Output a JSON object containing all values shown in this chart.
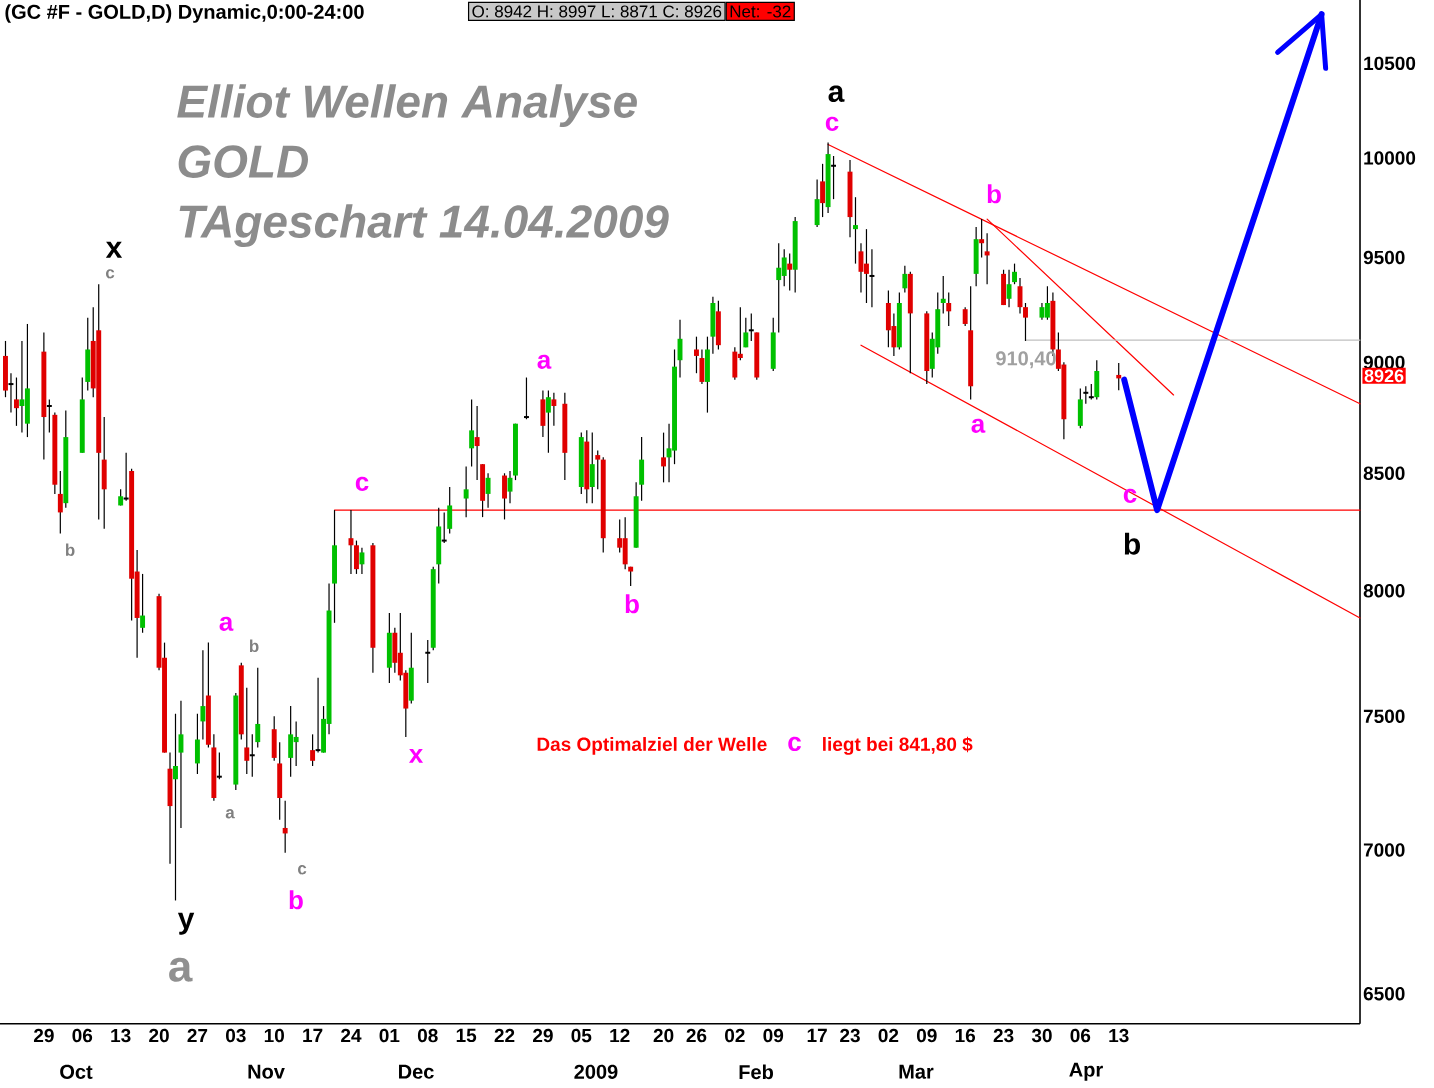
{
  "chart_data": {
    "type": "candlestick",
    "title": "(GC #F - GOLD,D) Dynamic,0:00-24:00",
    "subtitle": "Elliot Wellen Analyse",
    "x": [
      "2008-09-22",
      "2008-09-23",
      "2008-09-24",
      "2008-09-25",
      "2008-09-26",
      "2008-09-29",
      "2008-09-30",
      "2008-10-01",
      "2008-10-02",
      "2008-10-03",
      "2008-10-06",
      "2008-10-07",
      "2008-10-08",
      "2008-10-09",
      "2008-10-10",
      "2008-10-13",
      "2008-10-14",
      "2008-10-15",
      "2008-10-16",
      "2008-10-17",
      "2008-10-20",
      "2008-10-21",
      "2008-10-22",
      "2008-10-23",
      "2008-10-24",
      "2008-10-27",
      "2008-10-28",
      "2008-10-29",
      "2008-10-30",
      "2008-10-31",
      "2008-11-03",
      "2008-11-04",
      "2008-11-05",
      "2008-11-06",
      "2008-11-07",
      "2008-11-10",
      "2008-11-11",
      "2008-11-12",
      "2008-11-13",
      "2008-11-14",
      "2008-11-17",
      "2008-11-18",
      "2008-11-19",
      "2008-11-20",
      "2008-11-21",
      "2008-11-24",
      "2008-11-25",
      "2008-11-26",
      "2008-11-28",
      "2008-12-01",
      "2008-12-02",
      "2008-12-03",
      "2008-12-04",
      "2008-12-05",
      "2008-12-08",
      "2008-12-09",
      "2008-12-10",
      "2008-12-11",
      "2008-12-12",
      "2008-12-15",
      "2008-12-16",
      "2008-12-17",
      "2008-12-18",
      "2008-12-19",
      "2008-12-22",
      "2008-12-23",
      "2008-12-24",
      "2008-12-26",
      "2008-12-29",
      "2008-12-30",
      "2008-12-31",
      "2009-01-02",
      "2009-01-05",
      "2009-01-06",
      "2009-01-07",
      "2009-01-08",
      "2009-01-09",
      "2009-01-12",
      "2009-01-13",
      "2009-01-14",
      "2009-01-15",
      "2009-01-16",
      "2009-01-20",
      "2009-01-21",
      "2009-01-22",
      "2009-01-23",
      "2009-01-26",
      "2009-01-27",
      "2009-01-28",
      "2009-01-29",
      "2009-01-30",
      "2009-02-02",
      "2009-02-03",
      "2009-02-04",
      "2009-02-05",
      "2009-02-06",
      "2009-02-09",
      "2009-02-10",
      "2009-02-11",
      "2009-02-12",
      "2009-02-13",
      "2009-02-17",
      "2009-02-18",
      "2009-02-19",
      "2009-02-20",
      "2009-02-23",
      "2009-02-24",
      "2009-02-25",
      "2009-02-26",
      "2009-02-27",
      "2009-03-02",
      "2009-03-03",
      "2009-03-04",
      "2009-03-05",
      "2009-03-06",
      "2009-03-09",
      "2009-03-10",
      "2009-03-11",
      "2009-03-12",
      "2009-03-13",
      "2009-03-16",
      "2009-03-17",
      "2009-03-18",
      "2009-03-19",
      "2009-03-20",
      "2009-03-23",
      "2009-03-24",
      "2009-03-25",
      "2009-03-26",
      "2009-03-27",
      "2009-03-30",
      "2009-03-31",
      "2009-04-01",
      "2009-04-02",
      "2009-04-03",
      "2009-04-06",
      "2009-04-07",
      "2009-04-08",
      "2009-04-09",
      "2009-04-13"
    ],
    "ohlc": [
      [
        9030,
        9100,
        8840,
        8870
      ],
      [
        8900,
        8950,
        8770,
        8900
      ],
      [
        8830,
        8930,
        8710,
        8790
      ],
      [
        8800,
        9100,
        8680,
        8830
      ],
      [
        8720,
        9180,
        8660,
        8880
      ],
      [
        9050,
        9140,
        8560,
        8750
      ],
      [
        8800,
        8830,
        8680,
        8800
      ],
      [
        8760,
        8770,
        8410,
        8450
      ],
      [
        8410,
        8510,
        8240,
        8330
      ],
      [
        8370,
        8780,
        8350,
        8660
      ],
      [
        8590,
        8930,
        8590,
        8830
      ],
      [
        8910,
        9210,
        8870,
        9060
      ],
      [
        9100,
        9260,
        8840,
        8880
      ],
      [
        9150,
        9370,
        8300,
        8590
      ],
      [
        8560,
        8750,
        8260,
        8430
      ],
      [
        8360,
        8430,
        8360,
        8400
      ],
      [
        8390,
        8590,
        8380,
        8390
      ],
      [
        8510,
        8520,
        7880,
        8050
      ],
      [
        8080,
        8170,
        7730,
        7890
      ],
      [
        7850,
        8070,
        7830,
        7900
      ],
      [
        7980,
        7990,
        7680,
        7690
      ],
      [
        7730,
        7790,
        7360,
        7360
      ],
      [
        7300,
        7360,
        6950,
        7160
      ],
      [
        7260,
        7510,
        6820,
        7310
      ],
      [
        7360,
        7560,
        7080,
        7430
      ],
      [
        7320,
        7510,
        7280,
        7410
      ],
      [
        7480,
        7760,
        7410,
        7540
      ],
      [
        7580,
        7790,
        7380,
        7390
      ],
      [
        7380,
        7430,
        7180,
        7190
      ],
      [
        7270,
        7360,
        7260,
        7270
      ],
      [
        7240,
        7590,
        7220,
        7580
      ],
      [
        7700,
        7710,
        7410,
        7430
      ],
      [
        7380,
        7610,
        7280,
        7330
      ],
      [
        7350,
        7430,
        7270,
        7350
      ],
      [
        7400,
        7690,
        7380,
        7470
      ],
      [
        7450,
        7500,
        7330,
        7340
      ],
      [
        7320,
        7400,
        7110,
        7190
      ],
      [
        7080,
        7180,
        6990,
        7060
      ],
      [
        7340,
        7540,
        7270,
        7430
      ],
      [
        7400,
        7480,
        7310,
        7420
      ],
      [
        7370,
        7430,
        7310,
        7330
      ],
      [
        7370,
        7650,
        7360,
        7370
      ],
      [
        7360,
        7540,
        7360,
        7490
      ],
      [
        7470,
        8030,
        7430,
        7920
      ],
      [
        8030,
        8340,
        7870,
        8190
      ],
      [
        8220,
        8340,
        8070,
        8190
      ],
      [
        8190,
        8210,
        8070,
        8090
      ],
      [
        8110,
        8180,
        8070,
        8160
      ],
      [
        8190,
        8200,
        7670,
        7770
      ],
      [
        7690,
        7910,
        7630,
        7830
      ],
      [
        7830,
        7850,
        7670,
        7710
      ],
      [
        7750,
        7910,
        7640,
        7660
      ],
      [
        7670,
        7680,
        7420,
        7530
      ],
      [
        7560,
        7830,
        7550,
        7690
      ],
      [
        7750,
        7800,
        7630,
        7750
      ],
      [
        7770,
        8100,
        7760,
        8090
      ],
      [
        8110,
        8350,
        8030,
        8270
      ],
      [
        8210,
        8330,
        8200,
        8210
      ],
      [
        8260,
        8440,
        8240,
        8360
      ],
      [
        8390,
        8530,
        8310,
        8430
      ],
      [
        8610,
        8830,
        8530,
        8690
      ],
      [
        8660,
        8800,
        8470,
        8620
      ],
      [
        8540,
        8540,
        8310,
        8380
      ],
      [
        8410,
        8500,
        8350,
        8480
      ],
      [
        8490,
        8500,
        8300,
        8390
      ],
      [
        8420,
        8510,
        8370,
        8480
      ],
      [
        8490,
        8720,
        8470,
        8720
      ],
      [
        8750,
        8930,
        8740,
        8750
      ],
      [
        8830,
        8870,
        8660,
        8710
      ],
      [
        8770,
        8870,
        8590,
        8840
      ],
      [
        8830,
        8860,
        8710,
        8800
      ],
      [
        8810,
        8860,
        8470,
        8590
      ],
      [
        8440,
        8680,
        8410,
        8660
      ],
      [
        8640,
        8690,
        8370,
        8430
      ],
      [
        8440,
        8680,
        8370,
        8540
      ],
      [
        8580,
        8600,
        8430,
        8560
      ],
      [
        8560,
        8570,
        8160,
        8220
      ],
      [
        8220,
        8300,
        8160,
        8180
      ],
      [
        8220,
        8310,
        8090,
        8110
      ],
      [
        8100,
        8100,
        8020,
        8080
      ],
      [
        8180,
        8460,
        8180,
        8400
      ],
      [
        8450,
        8660,
        8380,
        8560
      ],
      [
        8570,
        8680,
        8460,
        8530
      ],
      [
        8570,
        8720,
        8460,
        8610
      ],
      [
        8600,
        9060,
        8540,
        8980
      ],
      [
        9010,
        9200,
        8930,
        9110
      ],
      [
        9060,
        9120,
        8950,
        9030
      ],
      [
        9020,
        9060,
        8900,
        8910
      ],
      [
        8910,
        9120,
        8770,
        9060
      ],
      [
        9120,
        9310,
        9040,
        9280
      ],
      [
        9240,
        9290,
        9060,
        9080
      ],
      [
        9050,
        9070,
        8920,
        8930
      ],
      [
        9040,
        9260,
        9010,
        9020
      ],
      [
        9070,
        9210,
        9070,
        9140
      ],
      [
        9150,
        9230,
        9100,
        9150
      ],
      [
        9140,
        9140,
        8920,
        8930
      ],
      [
        8970,
        9210,
        8960,
        9140
      ],
      [
        9390,
        9570,
        9140,
        9450
      ],
      [
        9410,
        9540,
        9360,
        9500
      ],
      [
        9470,
        9520,
        9340,
        9440
      ],
      [
        9440,
        9700,
        9330,
        9680
      ],
      [
        9660,
        9890,
        9650,
        9790
      ],
      [
        9880,
        9970,
        9700,
        9770
      ],
      [
        9750,
        10080,
        9720,
        10020
      ],
      [
        9960,
        10010,
        9790,
        9960
      ],
      [
        9930,
        9990,
        9600,
        9700
      ],
      [
        9640,
        9800,
        9470,
        9660
      ],
      [
        9530,
        9570,
        9330,
        9430
      ],
      [
        9470,
        9640,
        9280,
        9420
      ],
      [
        9410,
        9540,
        9260,
        9410
      ],
      [
        9280,
        9340,
        9070,
        9150
      ],
      [
        9170,
        9230,
        9030,
        9070
      ],
      [
        9070,
        9330,
        9060,
        9280
      ],
      [
        9350,
        9460,
        9330,
        9420
      ],
      [
        9420,
        9430,
        8950,
        9230
      ],
      [
        9230,
        9240,
        8900,
        8960
      ],
      [
        8970,
        9140,
        8930,
        9110
      ],
      [
        9070,
        9330,
        9040,
        9250
      ],
      [
        9280,
        9410,
        9230,
        9300
      ],
      [
        9280,
        9330,
        9170,
        9240
      ],
      [
        9250,
        9260,
        9170,
        9180
      ],
      [
        9150,
        9360,
        8830,
        8890
      ],
      [
        9420,
        9650,
        9360,
        9590
      ],
      [
        9590,
        9690,
        9500,
        9570
      ],
      [
        9530,
        9620,
        9370,
        9510
      ],
      [
        9420,
        9440,
        9270,
        9270
      ],
      [
        9300,
        9440,
        9260,
        9370
      ],
      [
        9380,
        9470,
        9370,
        9430
      ],
      [
        9360,
        9400,
        9230,
        9260
      ],
      [
        9260,
        9280,
        9100,
        9210
      ],
      [
        9210,
        9280,
        9200,
        9260
      ],
      [
        9210,
        9360,
        9200,
        9280
      ],
      [
        9290,
        9330,
        9030,
        9060
      ],
      [
        9060,
        9140,
        8960,
        8970
      ],
      [
        8990,
        9000,
        8650,
        8740
      ],
      [
        8710,
        8880,
        8700,
        8830
      ],
      [
        8860,
        8890,
        8810,
        8860
      ],
      [
        8840,
        8900,
        8830,
        8840
      ],
      [
        8840,
        9010,
        8830,
        8960
      ],
      [
        8942,
        8997,
        8871,
        8926
      ]
    ],
    "series": [
      {
        "type": "line",
        "color": "#ff0000",
        "x": [
          "2009-02-19",
          "2009-05-27"
        ],
        "values": [
          10070,
          8810
        ]
      },
      {
        "type": "line",
        "color": "#ff0000",
        "x": [
          "2009-02-25",
          "2009-05-27"
        ],
        "values": [
          9080,
          7890
        ]
      },
      {
        "type": "line",
        "color": "#ff0000",
        "x": [
          "2009-03-20",
          "2009-04-23"
        ],
        "values": [
          9690,
          8850
        ]
      },
      {
        "type": "line",
        "color": "#ff0000",
        "x": [
          "2008-11-21",
          "2009-05-27"
        ],
        "values": [
          8340,
          8340
        ]
      },
      {
        "type": "line",
        "color": "#c0c0c0",
        "x": [
          "2009-03-27",
          "2009-05-27"
        ],
        "values": [
          9104,
          9104
        ]
      },
      {
        "type": "line",
        "color": "#0000ff",
        "x": [
          "2009-04-14",
          "2009-04-20",
          "2009-05-20"
        ],
        "values": [
          8920,
          8340,
          10770
        ]
      }
    ],
    "xlim": [
      "2008-09-21",
      "2009-05-27"
    ],
    "xticks": [
      {
        "value": "2008-09-29",
        "label": "29"
      },
      {
        "value": "2008-10-06",
        "label": "06"
      },
      {
        "value": "2008-10-13",
        "label": "13"
      },
      {
        "value": "2008-10-20",
        "label": "20"
      },
      {
        "value": "2008-10-27",
        "label": "27"
      },
      {
        "value": "2008-11-03",
        "label": "03"
      },
      {
        "value": "2008-11-10",
        "label": "10"
      },
      {
        "value": "2008-11-17",
        "label": "17"
      },
      {
        "value": "2008-11-24",
        "label": "24"
      },
      {
        "value": "2008-12-01",
        "label": "01"
      },
      {
        "value": "2008-12-08",
        "label": "08"
      },
      {
        "value": "2008-12-15",
        "label": "15"
      },
      {
        "value": "2008-12-22",
        "label": "22"
      },
      {
        "value": "2008-12-29",
        "label": "29"
      },
      {
        "value": "2009-01-05",
        "label": "05"
      },
      {
        "value": "2009-01-12",
        "label": "12"
      },
      {
        "value": "2009-01-20",
        "label": "20"
      },
      {
        "value": "2009-01-26",
        "label": "26"
      },
      {
        "value": "2009-02-02",
        "label": "02"
      },
      {
        "value": "2009-02-09",
        "label": "09"
      },
      {
        "value": "2009-02-17",
        "label": "17"
      },
      {
        "value": "2009-02-23",
        "label": "23"
      },
      {
        "value": "2009-03-02",
        "label": "02"
      },
      {
        "value": "2009-03-09",
        "label": "09"
      },
      {
        "value": "2009-03-16",
        "label": "16"
      },
      {
        "value": "2009-03-23",
        "label": "23"
      },
      {
        "value": "2009-03-30",
        "label": "30"
      },
      {
        "value": "2009-04-06",
        "label": "06"
      },
      {
        "value": "2009-04-13",
        "label": "13"
      }
    ],
    "ylim": [
      6400,
      10850
    ],
    "yticks": [
      6500,
      7000,
      7500,
      8000,
      8500,
      9000,
      9500,
      10000,
      10500
    ],
    "log": "y",
    "annotations": [
      "GOLD",
      "TAgeschart 14.04.2009",
      "O: 8942   H: 8997   L: 8871   C: 8926",
      "Net: -32",
      "8926",
      "Das Optimalziel der Welle",
      "c",
      "liegt bei 841,80 $",
      "x",
      "c",
      "b",
      "y",
      "a",
      "a",
      "b",
      "a",
      "c",
      "b",
      "c",
      "x",
      "a",
      "b",
      "a",
      "c",
      "b",
      "910,40",
      "a",
      "c",
      "b",
      "Oct",
      "Nov",
      "Dec",
      "2009",
      "Feb",
      "Mar",
      "Apr"
    ]
  }
}
